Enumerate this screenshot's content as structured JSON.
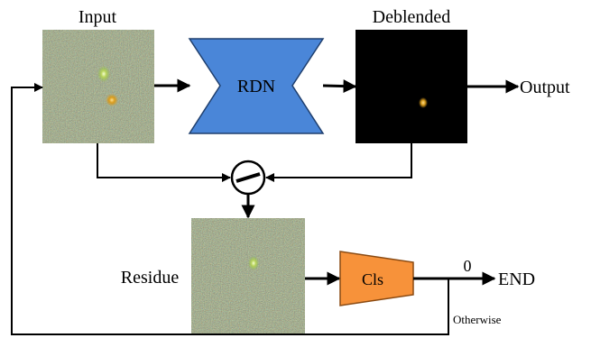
{
  "labels": {
    "input": "Input",
    "deblended": "Deblended",
    "output": "Output",
    "residue": "Residue",
    "end": "END",
    "otherwise": "Otherwise",
    "branch_zero": "0"
  },
  "blocks": {
    "rdn": {
      "label": "RDN",
      "fill": "#4a86d8",
      "stroke": "#1f3f6e"
    },
    "cls": {
      "label": "Cls",
      "fill": "#f7923a",
      "stroke": "#8a4a12"
    }
  },
  "operator": {
    "symbol": "minus"
  },
  "images": {
    "input": {
      "background": "#3a3a2a",
      "sources": 2
    },
    "deblended": {
      "background": "#000000",
      "sources": 1
    },
    "residue": {
      "background": "#3a3a2a",
      "sources": 1
    }
  }
}
